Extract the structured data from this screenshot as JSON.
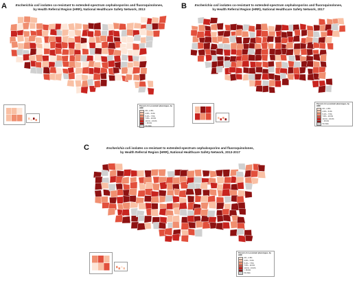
{
  "panels": [
    {
      "id": "A",
      "letter": "A",
      "title_organism": "Escherichia coli",
      "title_line1_rest": " isolates co-resistant to extended-spectrum cephalosporins and fluoroquinolones,",
      "title_line2": "by Health Referral Region (HRR), National Healthcare Safety Network, 2013"
    },
    {
      "id": "B",
      "letter": "B",
      "title_organism": "Escherichia coli",
      "title_line1_rest": " isolates co-resistant to extended-spectrum cephalosporins and fluoroquinolones,",
      "title_line2": "by Health Referral Region (HRR), National Healthcare Safety Network, 2017"
    },
    {
      "id": "C",
      "letter": "C",
      "title_organism": "Escherichia coli",
      "title_line1_rest": " isolates co-resistant to extended-spectrum cephalosporins and fluoroquinolones,",
      "title_line2": "by Health Referral Region (HRR), National Healthcare Safety Network, 2013-2017"
    }
  ],
  "legend": {
    "title": "Percent of co-resistant phenotypes, by HRR",
    "classes": [
      {
        "label": "0% - 2.5%",
        "color": "#fde6d8"
      },
      {
        "label": "2.6% - 5.0%",
        "color": "#f9c0a4"
      },
      {
        "label": "5.1% - 7.5%",
        "color": "#f08f70"
      },
      {
        "label": "7.6% - 10.0%",
        "color": "#e2503c"
      },
      {
        "label": "10.1% - 15.0%",
        "color": "#c8241f"
      },
      {
        "label": "> 15.0%",
        "color": "#8e1212"
      },
      {
        "label": "No data",
        "color": "#d0d0d0"
      }
    ]
  },
  "colors": {
    "no_data": "#d0d0d0",
    "border": "#ffffff"
  }
}
